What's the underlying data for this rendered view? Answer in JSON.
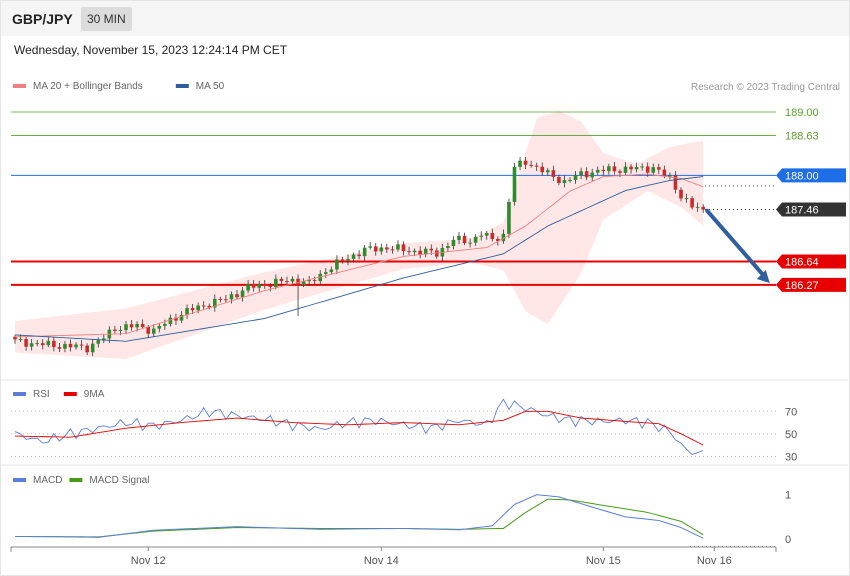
{
  "header": {
    "symbol": "GBP/JPY",
    "timeframe": "30 MIN",
    "datetime": "Wednesday, November 15, 2023 12:24:14 PM CET"
  },
  "colors": {
    "bollinger": "#f08080",
    "bollinger_fill": "#ffe4e4",
    "ma50": "#2e5d9a",
    "green_level": "#5aa02c",
    "blue_level": "#1e6ee8",
    "red_level": "#e60000",
    "current": "#333333",
    "arrow": "#2f5f9e",
    "candle_up": "#2e8b2e",
    "candle_down": "#cc2b2b",
    "rsi": "#5b7fd6",
    "rsi_ma": "#e60000",
    "macd": "#5b7fd6",
    "macd_signal": "#4a9a1a"
  },
  "chart_data": [
    {
      "type": "candlestick",
      "panel": "price",
      "legend": [
        {
          "label": "MA 20 + Bollinger Bands",
          "color": "#f08080"
        },
        {
          "label": "MA 50",
          "color": "#2e5d9a"
        }
      ],
      "copyright": "Research © 2023 Trading Central",
      "ylim": [
        184.8,
        189.3
      ],
      "x_ticks": [
        {
          "label": "Nov 12",
          "index": 24
        },
        {
          "label": "Nov 14",
          "index": 66
        },
        {
          "label": "Nov 15",
          "index": 106
        },
        {
          "label": "Nov 16",
          "index": 126
        }
      ],
      "levels": [
        {
          "value": 189.0,
          "label": "189.00",
          "kind": "green"
        },
        {
          "value": 188.63,
          "label": "188.63",
          "kind": "green"
        },
        {
          "value": 188.0,
          "label": "188.00",
          "kind": "blue"
        },
        {
          "value": 187.46,
          "label": "187.46",
          "kind": "current"
        },
        {
          "value": 186.64,
          "label": "186.64",
          "kind": "red"
        },
        {
          "value": 186.27,
          "label": "186.27",
          "kind": "red"
        }
      ],
      "forecast_arrow": {
        "from_index": 124,
        "from_value": 187.44,
        "to_index": 136,
        "to_value": 186.3
      },
      "close_anchors": [
        [
          0,
          185.38
        ],
        [
          5,
          185.33
        ],
        [
          10,
          185.3
        ],
        [
          13,
          185.28
        ],
        [
          16,
          185.43
        ],
        [
          18,
          185.59
        ],
        [
          22,
          185.62
        ],
        [
          25,
          185.55
        ],
        [
          30,
          185.82
        ],
        [
          35,
          185.98
        ],
        [
          38,
          186.05
        ],
        [
          42,
          186.23
        ],
        [
          46,
          186.29
        ],
        [
          50,
          186.35
        ],
        [
          53,
          186.29
        ],
        [
          56,
          186.5
        ],
        [
          60,
          186.7
        ],
        [
          63,
          186.82
        ],
        [
          67,
          186.86
        ],
        [
          71,
          186.81
        ],
        [
          74,
          186.79
        ],
        [
          76,
          186.77
        ],
        [
          79,
          186.98
        ],
        [
          82,
          186.96
        ],
        [
          84,
          187.08
        ],
        [
          86,
          186.98
        ],
        [
          88,
          187.06
        ],
        [
          89,
          187.6
        ],
        [
          90,
          188.12
        ],
        [
          92,
          188.22
        ],
        [
          96,
          188.02
        ],
        [
          99,
          187.9
        ],
        [
          102,
          188.02
        ],
        [
          106,
          188.08
        ],
        [
          110,
          188.1
        ],
        [
          115,
          188.12
        ],
        [
          118,
          187.95
        ],
        [
          120,
          187.68
        ],
        [
          122,
          187.5
        ],
        [
          124,
          187.46
        ]
      ],
      "ma20_anchors": [
        [
          0,
          185.45
        ],
        [
          20,
          185.5
        ],
        [
          45,
          186.18
        ],
        [
          70,
          186.72
        ],
        [
          85,
          186.86
        ],
        [
          92,
          187.2
        ],
        [
          100,
          187.75
        ],
        [
          106,
          187.98
        ],
        [
          114,
          188.02
        ],
        [
          120,
          187.95
        ],
        [
          124,
          187.82
        ]
      ],
      "bb_upper_anchors": [
        [
          0,
          185.7
        ],
        [
          20,
          185.9
        ],
        [
          45,
          186.47
        ],
        [
          70,
          186.93
        ],
        [
          82,
          187.0
        ],
        [
          88,
          187.25
        ],
        [
          94,
          188.9
        ],
        [
          98,
          189.02
        ],
        [
          102,
          188.85
        ],
        [
          106,
          188.35
        ],
        [
          112,
          188.18
        ],
        [
          118,
          188.45
        ],
        [
          124,
          188.55
        ]
      ],
      "bb_lower_anchors": [
        [
          0,
          185.2
        ],
        [
          20,
          185.1
        ],
        [
          45,
          185.88
        ],
        [
          70,
          186.52
        ],
        [
          82,
          186.63
        ],
        [
          88,
          186.5
        ],
        [
          92,
          185.85
        ],
        [
          96,
          185.65
        ],
        [
          102,
          186.45
        ],
        [
          106,
          187.3
        ],
        [
          114,
          187.75
        ],
        [
          120,
          187.5
        ],
        [
          124,
          187.2
        ]
      ],
      "ma50_anchors": [
        [
          0,
          185.48
        ],
        [
          20,
          185.38
        ],
        [
          45,
          185.74
        ],
        [
          70,
          186.38
        ],
        [
          88,
          186.76
        ],
        [
          96,
          187.2
        ],
        [
          110,
          187.76
        ],
        [
          118,
          187.92
        ],
        [
          124,
          187.98
        ]
      ]
    },
    {
      "type": "line",
      "panel": "rsi",
      "legend": [
        {
          "label": "RSI",
          "color": "#5b7fd6"
        },
        {
          "label": "9MA",
          "color": "#e60000"
        }
      ],
      "y_ticks": [
        70,
        50,
        30
      ],
      "ylim": [
        25,
        80
      ],
      "rsi_anchors": [
        [
          0,
          50
        ],
        [
          5,
          43
        ],
        [
          10,
          50
        ],
        [
          15,
          55
        ],
        [
          20,
          60
        ],
        [
          25,
          57
        ],
        [
          30,
          62
        ],
        [
          35,
          70
        ],
        [
          40,
          66
        ],
        [
          45,
          63
        ],
        [
          50,
          58
        ],
        [
          55,
          54
        ],
        [
          60,
          60
        ],
        [
          65,
          62
        ],
        [
          70,
          58
        ],
        [
          75,
          55
        ],
        [
          80,
          62
        ],
        [
          85,
          58
        ],
        [
          88,
          78
        ],
        [
          92,
          73
        ],
        [
          96,
          66
        ],
        [
          100,
          62
        ],
        [
          106,
          61
        ],
        [
          110,
          62
        ],
        [
          114,
          60
        ],
        [
          118,
          52
        ],
        [
          121,
          35
        ],
        [
          124,
          32
        ]
      ],
      "rsi_ma_anchors": [
        [
          0,
          48
        ],
        [
          10,
          47
        ],
        [
          20,
          55
        ],
        [
          30,
          60
        ],
        [
          40,
          64
        ],
        [
          50,
          60
        ],
        [
          60,
          58
        ],
        [
          70,
          60
        ],
        [
          80,
          58
        ],
        [
          88,
          62
        ],
        [
          92,
          70
        ],
        [
          96,
          70
        ],
        [
          102,
          64
        ],
        [
          110,
          61
        ],
        [
          116,
          59
        ],
        [
          120,
          50
        ],
        [
          124,
          40
        ]
      ]
    },
    {
      "type": "line",
      "panel": "macd",
      "legend": [
        {
          "label": "MACD",
          "color": "#5b7fd6"
        },
        {
          "label": "MACD Signal",
          "color": "#4a9a1a"
        }
      ],
      "y_ticks": [
        1,
        0
      ],
      "ylim": [
        -0.2,
        1.15
      ],
      "macd_anchors": [
        [
          0,
          0.06
        ],
        [
          10,
          0.05
        ],
        [
          15,
          0.04
        ],
        [
          25,
          0.2
        ],
        [
          40,
          0.28
        ],
        [
          55,
          0.22
        ],
        [
          70,
          0.24
        ],
        [
          80,
          0.21
        ],
        [
          86,
          0.3
        ],
        [
          90,
          0.78
        ],
        [
          94,
          1.0
        ],
        [
          98,
          0.95
        ],
        [
          104,
          0.72
        ],
        [
          110,
          0.5
        ],
        [
          116,
          0.42
        ],
        [
          120,
          0.26
        ],
        [
          124,
          0.02
        ]
      ],
      "signal_anchors": [
        [
          0,
          0.06
        ],
        [
          15,
          0.05
        ],
        [
          25,
          0.18
        ],
        [
          40,
          0.26
        ],
        [
          55,
          0.24
        ],
        [
          70,
          0.24
        ],
        [
          80,
          0.22
        ],
        [
          88,
          0.24
        ],
        [
          92,
          0.6
        ],
        [
          96,
          0.9
        ],
        [
          100,
          0.88
        ],
        [
          108,
          0.72
        ],
        [
          114,
          0.6
        ],
        [
          120,
          0.4
        ],
        [
          124,
          0.1
        ]
      ]
    }
  ]
}
